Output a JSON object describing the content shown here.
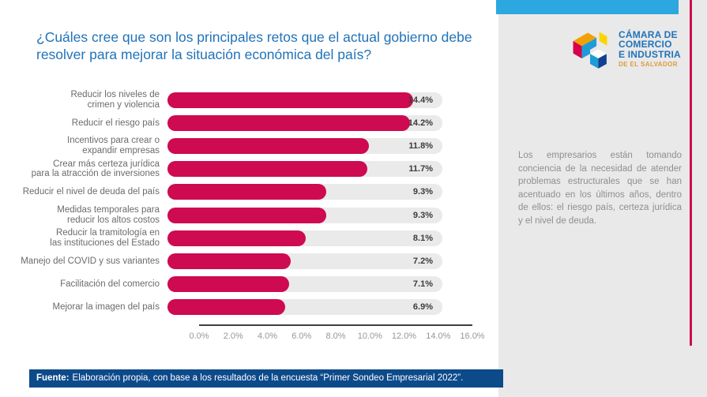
{
  "page": {
    "title": "¿Cuáles cree que son los principales retos que el actual gobierno debe resolver para mejorar la situación económica del país?"
  },
  "logo": {
    "org": "Cámara de Comercio e Industria de El Salvador",
    "line1": "CÁMARA DE",
    "line2": "COMERCIO",
    "line3": "E INDUSTRIA",
    "line4": "DE EL SALVADOR"
  },
  "note": {
    "text": "Los empresarios están tomando conciencia de la necesidad de atender problemas estructurales que se han acentuado en los últimos años, dentro de ellos: el riesgo país, certeza jurídica y el nivel de deuda."
  },
  "footer": {
    "label": "Fuente:",
    "text": "Elaboración propia, con base a los resultados de la encuesta “Primer Sondeo Empresarial 2022”."
  },
  "chart_data": {
    "type": "bar",
    "orientation": "horizontal",
    "title": "",
    "xlabel": "",
    "ylabel": "",
    "categories": [
      "Reducir los niveles de\ncrimen y violencia",
      "Reducir el riesgo país",
      "Incentivos para crear o\nexpandir empresas",
      "Crear más certeza jurídica\npara la atracción de inversiones",
      "Reducir el nivel de deuda del país",
      "Medidas temporales para\nreducir los altos costos",
      "Reducir la tramitología en\nlas instituciones del Estado",
      "Manejo del COVID y sus variantes",
      "Facilitación del comercio",
      "Mejorar la imagen del país"
    ],
    "values": [
      14.4,
      14.2,
      11.8,
      11.7,
      9.3,
      9.3,
      8.1,
      7.2,
      7.1,
      6.9
    ],
    "value_labels": [
      "14.4%",
      "14.2%",
      "11.8%",
      "11.7%",
      "9.3%",
      "9.3%",
      "8.1%",
      "7.2%",
      "7.1%",
      "6.9%"
    ],
    "x_ticks": [
      "0.0%",
      "2.0%",
      "4.0%",
      "6.0%",
      "8.0%",
      "10.0%",
      "12.0%",
      "14.0%",
      "16.0%"
    ],
    "xlim": [
      0,
      16
    ],
    "grid": false,
    "legend": false,
    "bar_color": "#CE0A50",
    "track_color": "#EAEAEA"
  },
  "colors": {
    "title_blue": "#2173B9",
    "bar_crimson": "#CE0A50",
    "footer_navy": "#0D4A8A",
    "topbar_cyan": "#2CA7DF",
    "panel_gray": "#E9E9E9",
    "accent_line_crimson": "#C9104F"
  }
}
